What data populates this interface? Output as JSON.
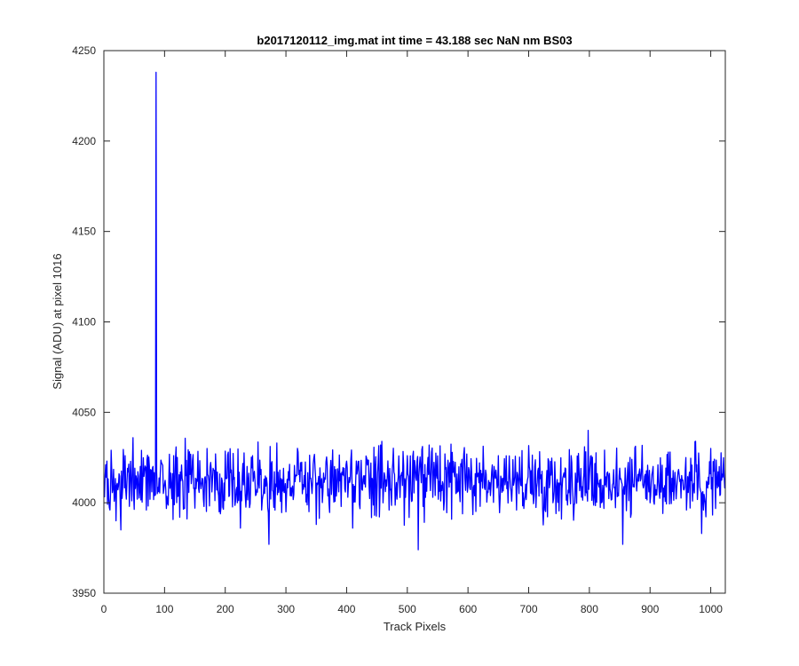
{
  "chart_data": {
    "type": "line",
    "title": "b2017120112_img.mat int time = 43.188 sec  NaN nm BS03",
    "xlabel": "Track Pixels",
    "ylabel": "Signal (ADU) at pixel 1016",
    "xlim": [
      0,
      1024
    ],
    "ylim": [
      3950,
      4250
    ],
    "xticks": [
      0,
      100,
      200,
      300,
      400,
      500,
      600,
      700,
      800,
      900,
      1000
    ],
    "yticks": [
      3950,
      4000,
      4050,
      4100,
      4150,
      4200,
      4250
    ],
    "xtick_labels": [
      "0",
      "100",
      "200",
      "300",
      "400",
      "500",
      "600",
      "700",
      "800",
      "900",
      "1000"
    ],
    "ytick_labels": [
      "3950",
      "4000",
      "4050",
      "4100",
      "4150",
      "4200",
      "4250"
    ],
    "grid": false,
    "legend": "none",
    "series": [
      {
        "color": "#0000ff",
        "baseline": 4012,
        "noise_amplitude": 9,
        "points": [
          [
            1,
            4003
          ],
          [
            5,
            4023
          ],
          [
            10,
            3996
          ],
          [
            15,
            4008
          ],
          [
            20,
            3990
          ],
          [
            25,
            4016
          ],
          [
            28,
            3985
          ],
          [
            35,
            4026
          ],
          [
            42,
            3998
          ],
          [
            48,
            4036
          ],
          [
            55,
            4002
          ],
          [
            62,
            4029
          ],
          [
            70,
            3996
          ],
          [
            78,
            4018
          ],
          [
            84,
            4004
          ],
          [
            86,
            4238
          ],
          [
            88,
            4005
          ],
          [
            95,
            4022
          ],
          [
            105,
            4000
          ],
          [
            115,
            4026
          ],
          [
            125,
            3992
          ],
          [
            135,
            4015
          ],
          [
            150,
            3997
          ],
          [
            170,
            4030
          ],
          [
            190,
            3995
          ],
          [
            205,
            4028
          ],
          [
            225,
            3986
          ],
          [
            245,
            4026
          ],
          [
            260,
            3996
          ],
          [
            272,
            3977
          ],
          [
            285,
            4033
          ],
          [
            300,
            3995
          ],
          [
            320,
            4028
          ],
          [
            350,
            3988
          ],
          [
            380,
            4020
          ],
          [
            410,
            3986
          ],
          [
            440,
            4022
          ],
          [
            470,
            3996
          ],
          [
            500,
            4026
          ],
          [
            518,
            3974
          ],
          [
            540,
            4028
          ],
          [
            560,
            3996
          ],
          [
            590,
            4024
          ],
          [
            620,
            3998
          ],
          [
            650,
            4026
          ],
          [
            680,
            3996
          ],
          [
            710,
            4020
          ],
          [
            740,
            4000
          ],
          [
            770,
            4026
          ],
          [
            798,
            4040
          ],
          [
            820,
            4000
          ],
          [
            855,
            3977
          ],
          [
            870,
            4024
          ],
          [
            900,
            4000
          ],
          [
            930,
            4028
          ],
          [
            960,
            3996
          ],
          [
            975,
            4034
          ],
          [
            985,
            3983
          ],
          [
            1000,
            4030
          ],
          [
            1015,
            4004
          ],
          [
            1024,
            4008
          ]
        ]
      }
    ]
  }
}
